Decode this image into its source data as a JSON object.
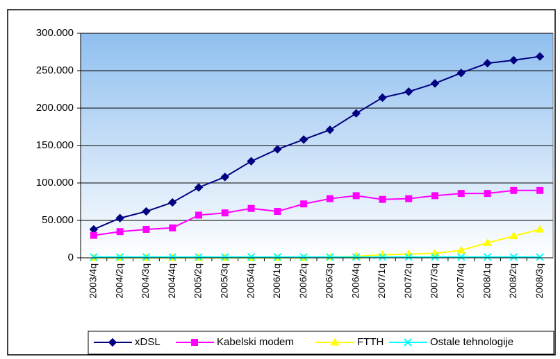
{
  "chart_data": {
    "type": "line",
    "categories": [
      "2003/4q",
      "2004/2q",
      "2004/3q",
      "2004/4q",
      "2005/2q",
      "2005/3q",
      "2005/4q",
      "2006/1q",
      "2006/2q",
      "2006/3q",
      "2006/4q",
      "2007/1q",
      "2007/2q",
      "2007/3q",
      "2007/4q",
      "2008/1q",
      "2008/2q",
      "2008/3q"
    ],
    "series": [
      {
        "name": "xDSL",
        "color": "#000080",
        "marker": "diamond",
        "values": [
          38000,
          53000,
          62000,
          74000,
          94000,
          108000,
          129000,
          145000,
          158000,
          171000,
          193000,
          214000,
          222000,
          233000,
          247000,
          260000,
          264000,
          269000
        ]
      },
      {
        "name": "Kabelski modem",
        "color": "#ff00ff",
        "marker": "square",
        "values": [
          30000,
          35000,
          38000,
          40000,
          57000,
          60000,
          66000,
          62000,
          72000,
          79000,
          83000,
          78000,
          79000,
          83000,
          86000,
          86000,
          90000,
          90000
        ]
      },
      {
        "name": "FTTH",
        "color": "#ffff00",
        "marker": "triangle",
        "values": [
          0,
          0,
          0,
          0,
          0,
          0,
          0,
          0,
          0,
          1000,
          2000,
          4000,
          5000,
          6000,
          10000,
          20000,
          29000,
          38000
        ]
      },
      {
        "name": "Ostale tehnologije",
        "color": "#00ffff",
        "marker": "x",
        "values": [
          1000,
          1000,
          1000,
          1000,
          1000,
          1000,
          1000,
          1000,
          1000,
          1000,
          1000,
          1000,
          1000,
          1000,
          1000,
          1000,
          1000,
          1000
        ]
      }
    ],
    "ylim": [
      0,
      300000
    ],
    "yticks": [
      0,
      {
        "value": 50000,
        "label": "50.000"
      },
      {
        "value": 100000,
        "label": "100.000"
      },
      {
        "value": 150000,
        "label": "150.000"
      },
      {
        "value": 200000,
        "label": "200.000"
      },
      {
        "value": 250000,
        "label": "250.000"
      },
      {
        "value": 300000,
        "label": "300.000"
      }
    ],
    "grid": true,
    "legend": "bottom"
  }
}
